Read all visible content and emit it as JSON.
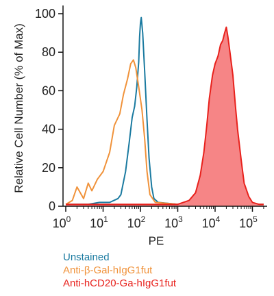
{
  "chart_data": {
    "type": "area",
    "xlabel": "PE",
    "ylabel": "Relative Cell Number (% of Max)",
    "xscale": "log",
    "xlim": [
      1,
      200000
    ],
    "ylim": [
      0,
      100
    ],
    "x_ticks": [
      {
        "value": 1,
        "base": "10",
        "exp": "0"
      },
      {
        "value": 10,
        "base": "10",
        "exp": "1"
      },
      {
        "value": 100,
        "base": "10",
        "exp": "2"
      },
      {
        "value": 1000,
        "base": "10",
        "exp": "3"
      },
      {
        "value": 10000,
        "base": "10",
        "exp": "4"
      },
      {
        "value": 100000,
        "base": "10",
        "exp": "5"
      }
    ],
    "y_ticks": [
      {
        "value": 0,
        "label": "0"
      },
      {
        "value": 20,
        "label": "20"
      },
      {
        "value": 40,
        "label": "40"
      },
      {
        "value": 60,
        "label": "60"
      },
      {
        "value": 80,
        "label": "80"
      },
      {
        "value": 100,
        "label": "100"
      }
    ],
    "grid": false,
    "legend_position": "below",
    "series": [
      {
        "name": "Unstained",
        "color": "#1a7aa0",
        "filled": false,
        "points": [
          [
            1,
            1
          ],
          [
            2,
            1
          ],
          [
            4,
            1
          ],
          [
            8,
            2
          ],
          [
            15,
            2
          ],
          [
            25,
            4
          ],
          [
            30,
            6
          ],
          [
            40,
            18
          ],
          [
            50,
            33
          ],
          [
            60,
            46
          ],
          [
            70,
            52
          ],
          [
            80,
            62
          ],
          [
            90,
            75
          ],
          [
            95,
            88
          ],
          [
            100,
            95
          ],
          [
            105,
            98
          ],
          [
            115,
            90
          ],
          [
            130,
            70
          ],
          [
            150,
            45
          ],
          [
            170,
            25
          ],
          [
            200,
            10
          ],
          [
            230,
            4
          ],
          [
            300,
            2
          ],
          [
            1000,
            1
          ],
          [
            200000,
            1
          ]
        ]
      },
      {
        "name": "Anti-β-Gal-hIgG1fut",
        "color": "#f0923a",
        "filled": false,
        "points": [
          [
            1,
            1
          ],
          [
            1.5,
            3
          ],
          [
            2,
            10
          ],
          [
            3,
            4
          ],
          [
            4,
            12
          ],
          [
            5,
            8
          ],
          [
            7,
            14
          ],
          [
            10,
            18
          ],
          [
            15,
            28
          ],
          [
            20,
            42
          ],
          [
            28,
            48
          ],
          [
            35,
            58
          ],
          [
            45,
            66
          ],
          [
            55,
            74
          ],
          [
            65,
            76
          ],
          [
            75,
            72
          ],
          [
            90,
            62
          ],
          [
            110,
            50
          ],
          [
            130,
            35
          ],
          [
            150,
            18
          ],
          [
            180,
            6
          ],
          [
            250,
            2
          ],
          [
            1000,
            1
          ],
          [
            200000,
            1
          ]
        ]
      },
      {
        "name": "Anti-hCD20-Ga-hIgG1fut",
        "color": "#e8211c",
        "fill": "#f68586",
        "filled": true,
        "points": [
          [
            1,
            1
          ],
          [
            500,
            1
          ],
          [
            1000,
            1
          ],
          [
            2000,
            3
          ],
          [
            3000,
            7
          ],
          [
            4000,
            16
          ],
          [
            5000,
            28
          ],
          [
            6000,
            42
          ],
          [
            7000,
            56
          ],
          [
            8500,
            68
          ],
          [
            10000,
            74
          ],
          [
            12000,
            78
          ],
          [
            14000,
            84
          ],
          [
            16000,
            86
          ],
          [
            18000,
            90
          ],
          [
            20000,
            93
          ],
          [
            22000,
            88
          ],
          [
            25000,
            80
          ],
          [
            30000,
            68
          ],
          [
            35000,
            52
          ],
          [
            40000,
            40
          ],
          [
            50000,
            24
          ],
          [
            60000,
            12
          ],
          [
            80000,
            5
          ],
          [
            100000,
            2
          ],
          [
            150000,
            1
          ],
          [
            200000,
            1
          ]
        ]
      }
    ]
  }
}
